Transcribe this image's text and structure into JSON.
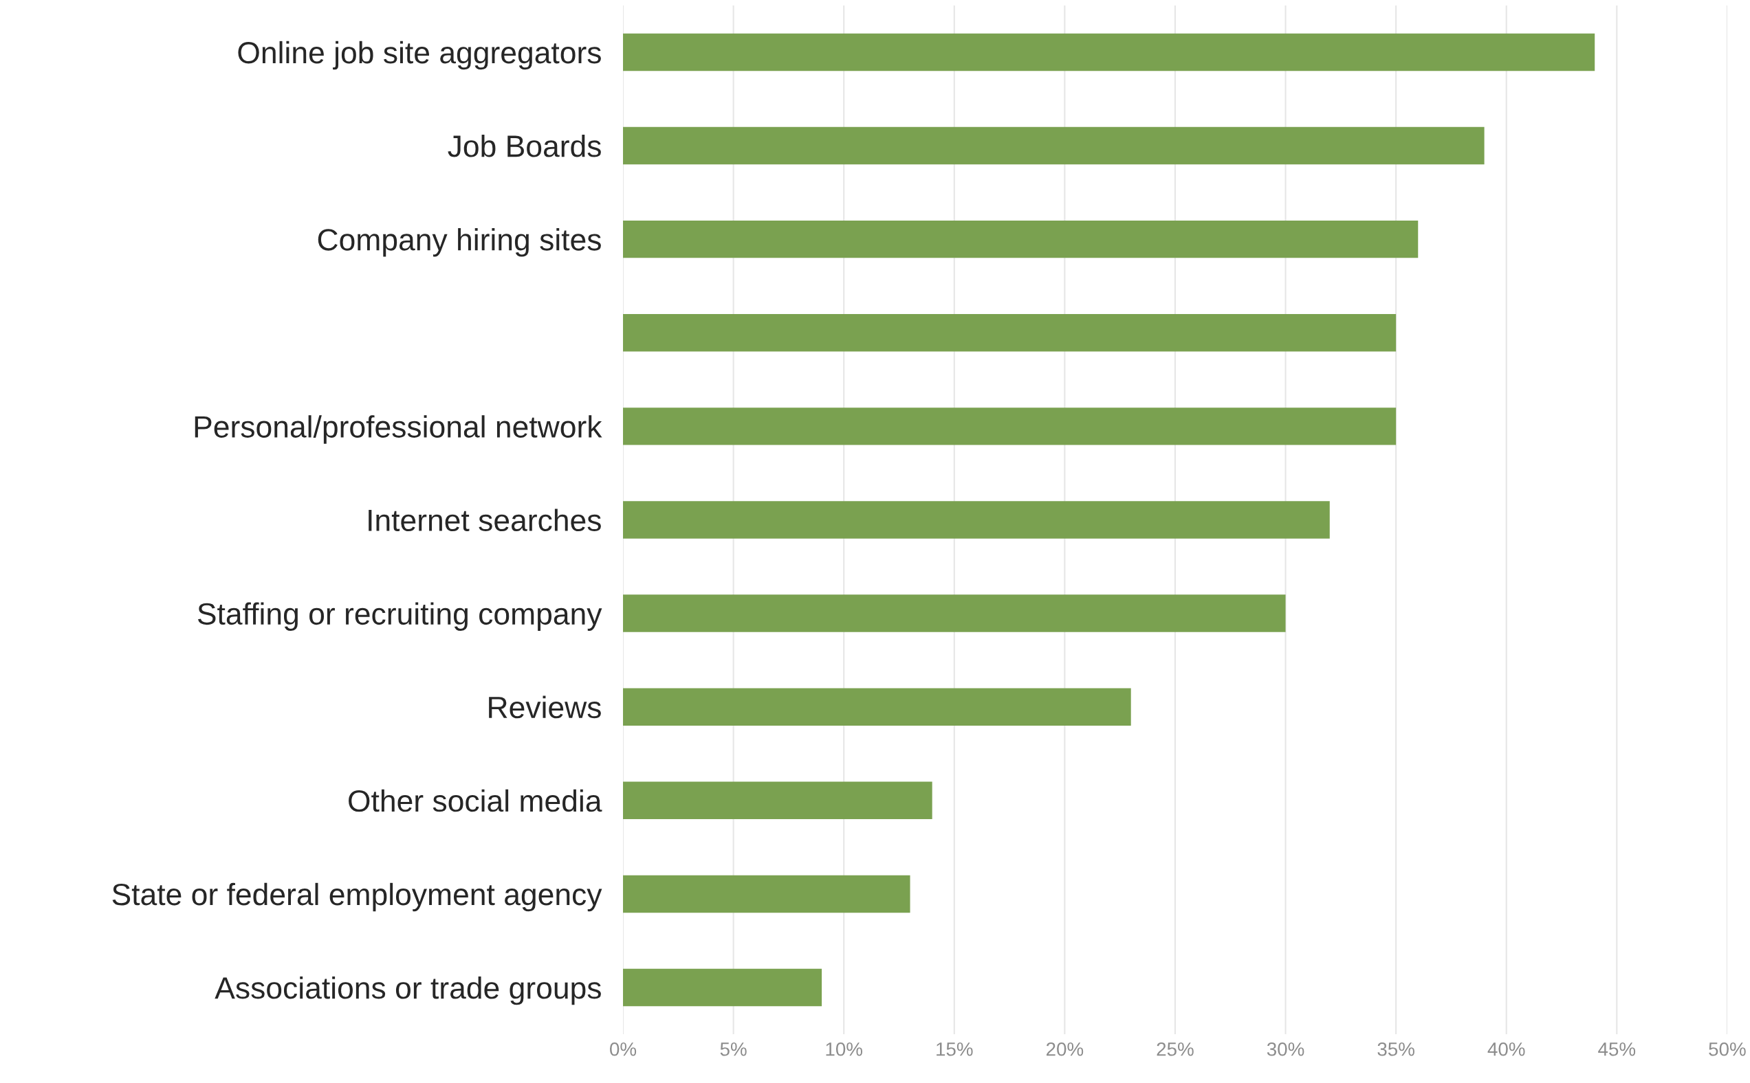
{
  "chart_data": {
    "type": "bar",
    "orientation": "horizontal",
    "categories": [
      "Online job site aggregators",
      "Job Boards",
      "Company hiring sites",
      null,
      "Personal/professional network",
      "Internet searches",
      "Staffing or recruiting company",
      "Reviews",
      "Other social media",
      "State or federal employment agency",
      "Associations or trade groups"
    ],
    "values": [
      44,
      39,
      36,
      35,
      35,
      32,
      30,
      23,
      14,
      13,
      9
    ],
    "color": "#7aa150",
    "xlim": [
      0,
      50
    ],
    "xticks": [
      {
        "value": 0,
        "label": "0%"
      },
      {
        "value": 5,
        "label": "5%"
      },
      {
        "value": 10,
        "label": "10%"
      },
      {
        "value": 15,
        "label": "15%"
      },
      {
        "value": 20,
        "label": "20%"
      },
      {
        "value": 25,
        "label": "25%"
      },
      {
        "value": 30,
        "label": "30%"
      },
      {
        "value": 35,
        "label": "35%"
      },
      {
        "value": 40,
        "label": "40%"
      },
      {
        "value": 45,
        "label": "45%"
      },
      {
        "value": 50,
        "label": "50%"
      }
    ],
    "grid": "x"
  }
}
